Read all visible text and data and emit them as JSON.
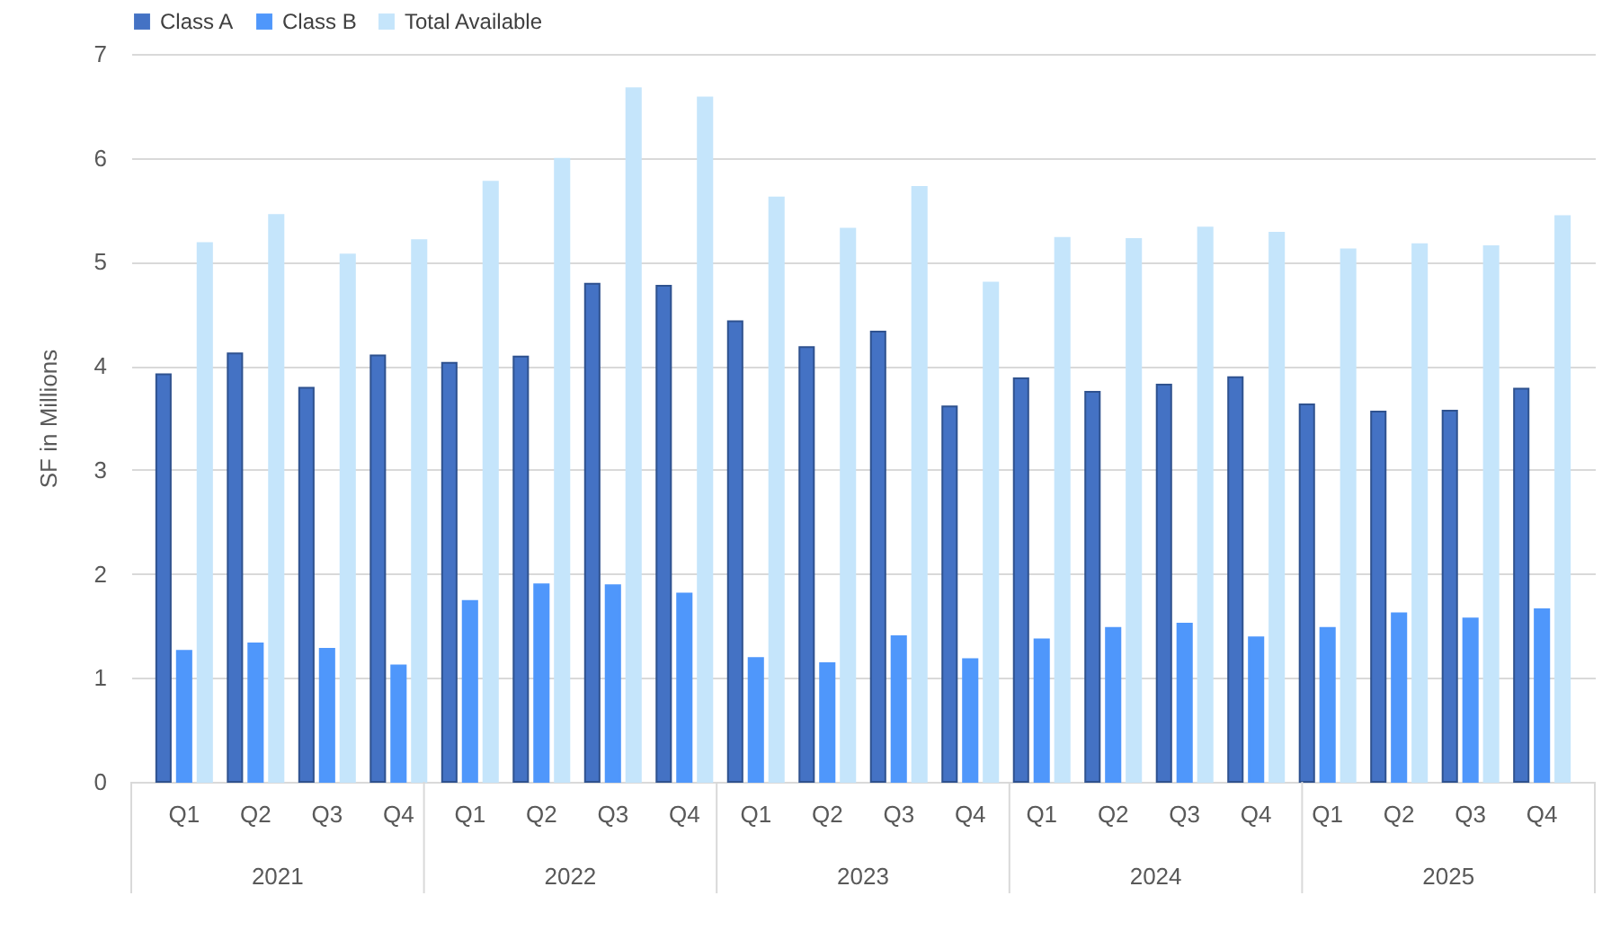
{
  "chart_data": {
    "type": "bar",
    "ylabel": "SF in Millions",
    "categories": [
      "Q1",
      "Q2",
      "Q3",
      "Q4",
      "Q1",
      "Q2",
      "Q3",
      "Q4",
      "Q1",
      "Q2",
      "Q3",
      "Q4",
      "Q1",
      "Q2",
      "Q3",
      "Q4",
      "Q1",
      "Q2",
      "Q3",
      "Q4"
    ],
    "annotations": [
      "2021",
      "2022",
      "2023",
      "2024",
      "2025"
    ],
    "series": [
      {
        "name": "Class A",
        "color": "#4472c4",
        "values": [
          3.92,
          4.12,
          3.79,
          4.1,
          4.03,
          4.09,
          4.79,
          4.77,
          4.43,
          4.18,
          4.33,
          3.61,
          3.88,
          3.75,
          3.82,
          3.89,
          3.63,
          3.56,
          3.57,
          3.78
        ]
      },
      {
        "name": "Class B",
        "color": "#4f97fb",
        "values": [
          1.26,
          1.33,
          1.28,
          1.12,
          1.74,
          1.9,
          1.89,
          1.81,
          1.19,
          1.14,
          1.4,
          1.18,
          1.37,
          1.48,
          1.52,
          1.39,
          1.48,
          1.62,
          1.57,
          1.66
        ]
      },
      {
        "name": "Total Available",
        "color": "#c5e5fb",
        "values": [
          5.18,
          5.45,
          5.07,
          5.21,
          5.77,
          5.99,
          6.67,
          6.58,
          5.62,
          5.32,
          5.72,
          4.8,
          5.23,
          5.22,
          5.33,
          5.28,
          5.12,
          5.17,
          5.15,
          5.44
        ]
      }
    ],
    "ylim": [
      0,
      7
    ],
    "yticks": [
      0,
      1,
      2,
      3,
      4,
      5,
      6,
      7
    ],
    "grid": "y",
    "legend": "top"
  }
}
